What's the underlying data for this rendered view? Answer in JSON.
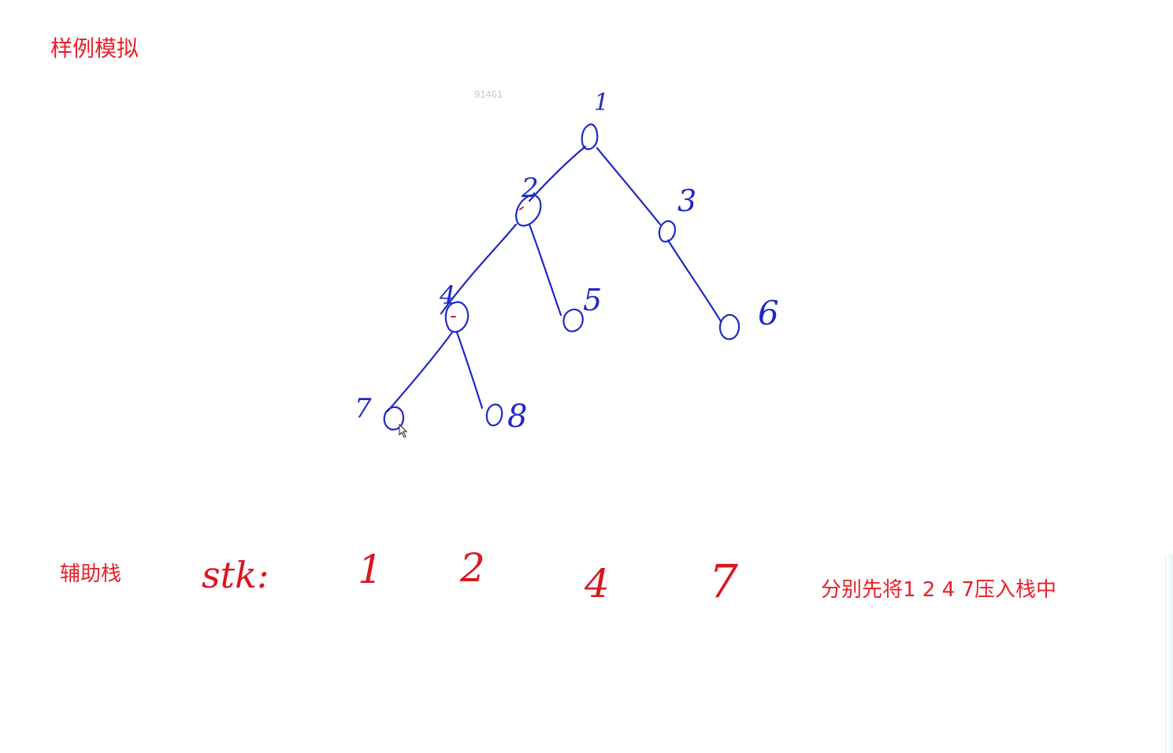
{
  "title": "样例模拟",
  "watermark": "91461",
  "tree": {
    "ink_color": "#1e28c8",
    "nodes": [
      {
        "id": "n1",
        "label": "1"
      },
      {
        "id": "n2",
        "label": "2"
      },
      {
        "id": "n3",
        "label": "3"
      },
      {
        "id": "n4",
        "label": "4"
      },
      {
        "id": "n5",
        "label": "5"
      },
      {
        "id": "n6",
        "label": "6"
      },
      {
        "id": "n7",
        "label": "7"
      },
      {
        "id": "n8",
        "label": "8"
      }
    ],
    "edges": [
      [
        "n1",
        "n2"
      ],
      [
        "n1",
        "n3"
      ],
      [
        "n2",
        "n4"
      ],
      [
        "n2",
        "n5"
      ],
      [
        "n3",
        "n6"
      ],
      [
        "n4",
        "n7"
      ],
      [
        "n4",
        "n8"
      ]
    ]
  },
  "stack": {
    "label": "辅助栈",
    "name": "stk:",
    "items": [
      "1",
      "2",
      "4",
      "7"
    ],
    "ink_color": "#d81820"
  },
  "note": "分别先将1 2 4 7压入栈中",
  "accent_color": "#e8202a"
}
